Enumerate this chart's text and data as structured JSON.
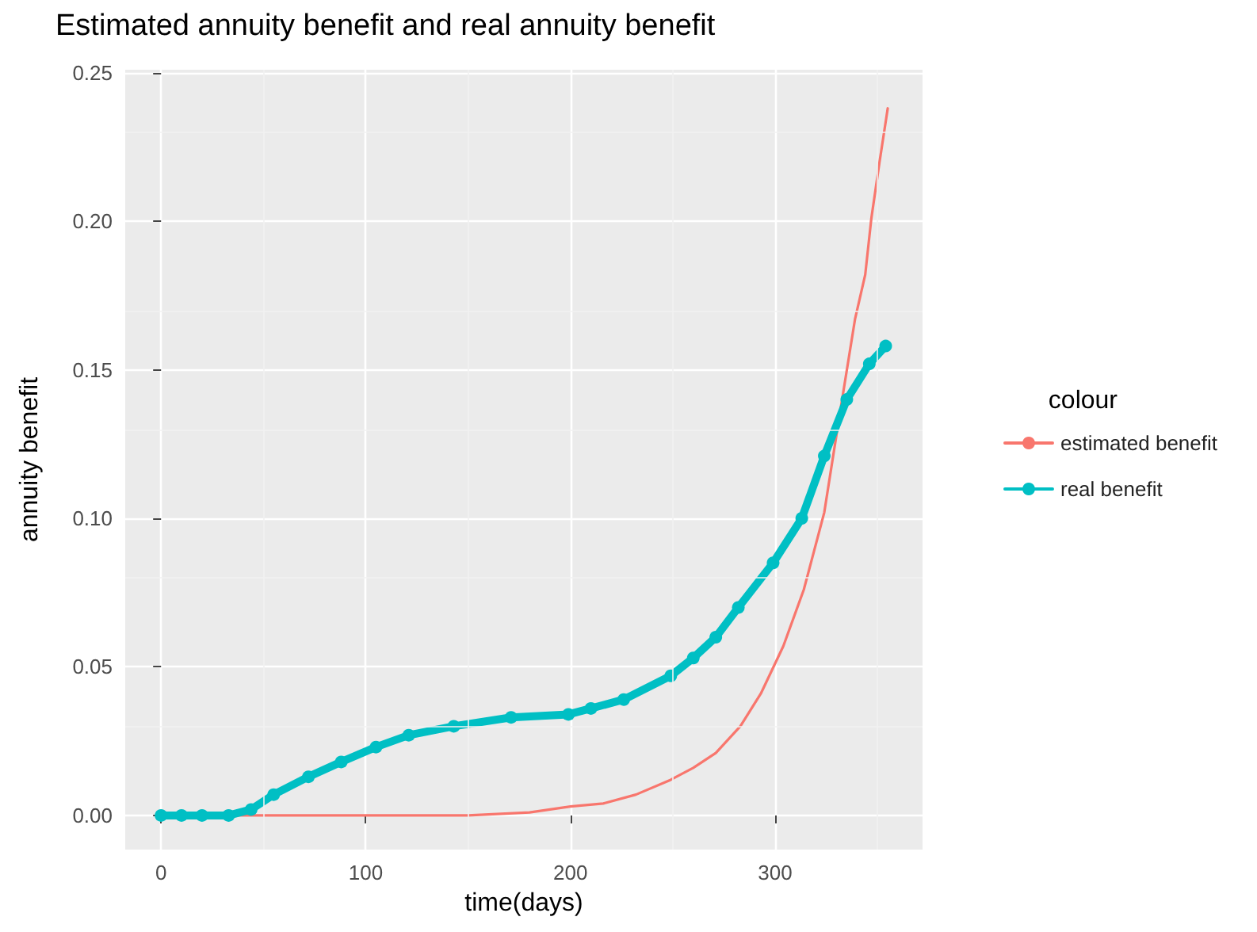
{
  "chart_data": {
    "type": "line",
    "title": "Estimated annuity benefit and real annuity benefit",
    "xlabel": "time(days)",
    "ylabel": "annuity benefit",
    "legend_title": "colour",
    "legend": "right",
    "grid": true,
    "xlim": [
      -17.5,
      372
    ],
    "xticks": [
      0,
      100,
      200,
      300
    ],
    "ylim": [
      -0.0115,
      0.251
    ],
    "yticks": [
      {
        "value": 0,
        "label": "0.00"
      },
      {
        "value": 0.05,
        "label": "0.05"
      },
      {
        "value": 0.1,
        "label": "0.10"
      },
      {
        "value": 0.15,
        "label": "0.15"
      },
      {
        "value": 0.2,
        "label": "0.20"
      },
      {
        "value": 0.25,
        "label": "0.25"
      }
    ],
    "series": [
      {
        "name": "estimated benefit",
        "color": "#f8766d",
        "marker": "none",
        "x": [
          0,
          50,
          100,
          150,
          180,
          200,
          216,
          232,
          249,
          260,
          271,
          283,
          293,
          304,
          314,
          324,
          332,
          339,
          344,
          347,
          351,
          355
        ],
        "values": [
          0,
          0,
          0,
          0,
          0.001,
          0.003,
          0.004,
          0.007,
          0.012,
          0.016,
          0.021,
          0.03,
          0.041,
          0.057,
          0.076,
          0.102,
          0.137,
          0.167,
          0.182,
          0.201,
          0.22,
          0.238
        ]
      },
      {
        "name": "real benefit",
        "color": "#00bfc4",
        "marker": "circle",
        "x": [
          0,
          10,
          20,
          33,
          44,
          55,
          72,
          88,
          105,
          121,
          143,
          171,
          199,
          210,
          226,
          249,
          260,
          271,
          282,
          299,
          313,
          324,
          335,
          346,
          354
        ],
        "values": [
          0,
          0,
          0,
          0,
          0.002,
          0.007,
          0.013,
          0.018,
          0.023,
          0.027,
          0.03,
          0.033,
          0.034,
          0.036,
          0.039,
          0.047,
          0.053,
          0.06,
          0.07,
          0.085,
          0.1,
          0.121,
          0.14,
          0.152,
          0.158
        ]
      }
    ]
  }
}
